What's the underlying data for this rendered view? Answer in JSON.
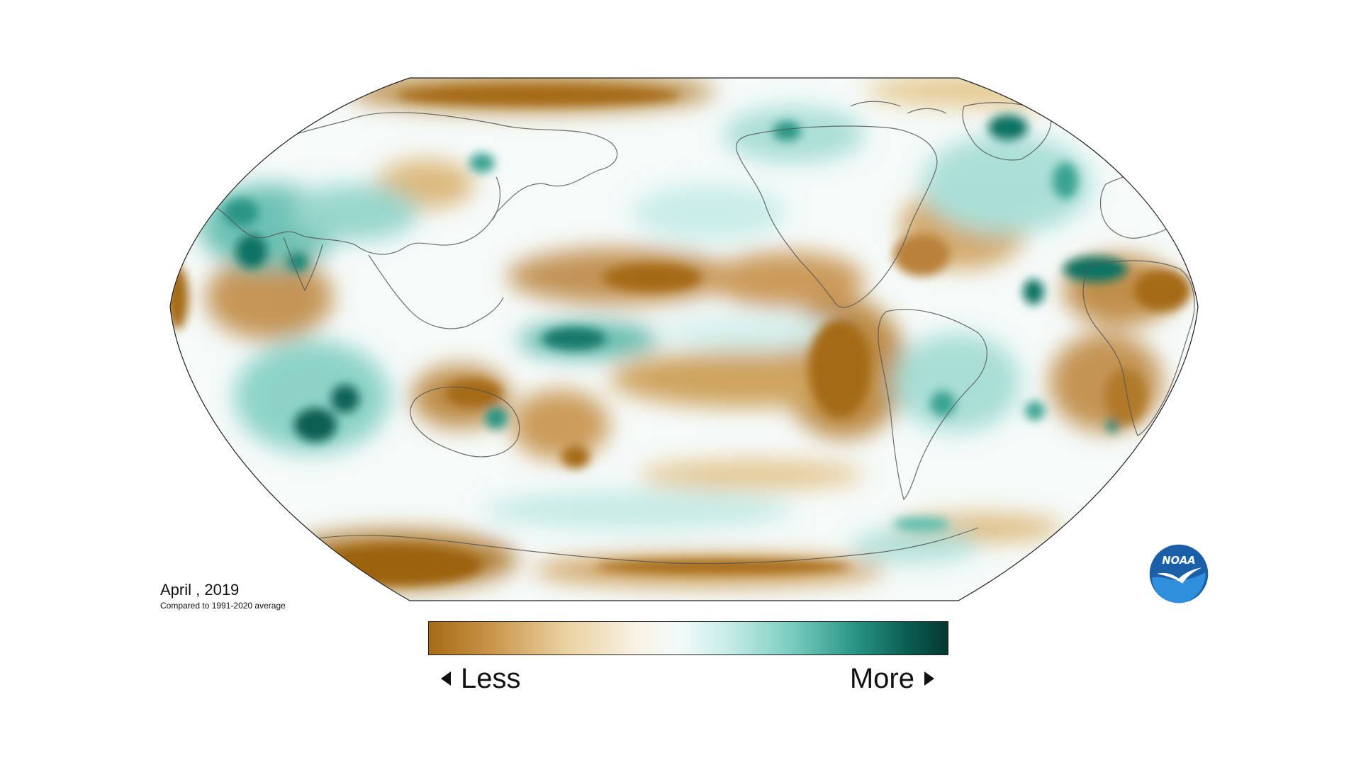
{
  "map": {
    "projection": "robinson",
    "variable": "precipitation anomaly",
    "colors": {
      "dry_strong": "#a56a14",
      "dry_mid": "#d3a660",
      "dry_light": "#f1dfb6",
      "neutral": "#f6fbfa",
      "wet_light": "#bfe8e2",
      "wet_mid": "#5fbfb0",
      "wet_strong": "#0f7264",
      "wet_darkest": "#073f36",
      "coastline": "#555555"
    }
  },
  "caption": {
    "date_label": "April , 2019",
    "subtitle": "Compared to 1991-2020 average"
  },
  "legend": {
    "less_label": "Less",
    "more_label": "More",
    "gradient_stops": [
      "#a56a14",
      "#c9944a",
      "#e9d0a0",
      "#f8f2e4",
      "#f4fbfa",
      "#c6ebe6",
      "#79ccbf",
      "#2a9585",
      "#0b5e52",
      "#06362f"
    ]
  },
  "logo": {
    "text": "NOAA",
    "icon": "noaa-logo-icon",
    "colors": {
      "outer": "#1a5fa8",
      "inner": "#2f8fdc",
      "bird": "#ffffff"
    }
  }
}
